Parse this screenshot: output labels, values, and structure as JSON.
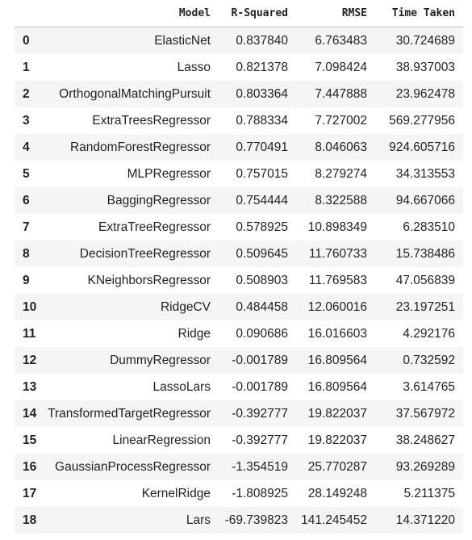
{
  "table": {
    "columns": [
      "",
      "Model",
      "R-Squared",
      "RMSE",
      "Time Taken"
    ],
    "rows": [
      {
        "index": "0",
        "model": "ElasticNet",
        "r2": "0.837840",
        "rmse": "6.763483",
        "time": "30.724689"
      },
      {
        "index": "1",
        "model": "Lasso",
        "r2": "0.821378",
        "rmse": "7.098424",
        "time": "38.937003"
      },
      {
        "index": "2",
        "model": "OrthogonalMatchingPursuit",
        "r2": "0.803364",
        "rmse": "7.447888",
        "time": "23.962478"
      },
      {
        "index": "3",
        "model": "ExtraTreesRegressor",
        "r2": "0.788334",
        "rmse": "7.727002",
        "time": "569.277956"
      },
      {
        "index": "4",
        "model": "RandomForestRegressor",
        "r2": "0.770491",
        "rmse": "8.046063",
        "time": "924.605716"
      },
      {
        "index": "5",
        "model": "MLPRegressor",
        "r2": "0.757015",
        "rmse": "8.279274",
        "time": "34.313553"
      },
      {
        "index": "6",
        "model": "BaggingRegressor",
        "r2": "0.754444",
        "rmse": "8.322588",
        "time": "94.667066"
      },
      {
        "index": "7",
        "model": "ExtraTreeRegressor",
        "r2": "0.578925",
        "rmse": "10.898349",
        "time": "6.283510"
      },
      {
        "index": "8",
        "model": "DecisionTreeRegressor",
        "r2": "0.509645",
        "rmse": "11.760733",
        "time": "15.738486"
      },
      {
        "index": "9",
        "model": "KNeighborsRegressor",
        "r2": "0.508903",
        "rmse": "11.769583",
        "time": "47.056839"
      },
      {
        "index": "10",
        "model": "RidgeCV",
        "r2": "0.484458",
        "rmse": "12.060016",
        "time": "23.197251"
      },
      {
        "index": "11",
        "model": "Ridge",
        "r2": "0.090686",
        "rmse": "16.016603",
        "time": "4.292176"
      },
      {
        "index": "12",
        "model": "DummyRegressor",
        "r2": "-0.001789",
        "rmse": "16.809564",
        "time": "0.732592"
      },
      {
        "index": "13",
        "model": "LassoLars",
        "r2": "-0.001789",
        "rmse": "16.809564",
        "time": "3.614765"
      },
      {
        "index": "14",
        "model": "TransformedTargetRegressor",
        "r2": "-0.392777",
        "rmse": "19.822037",
        "time": "37.567972"
      },
      {
        "index": "15",
        "model": "LinearRegression",
        "r2": "-0.392777",
        "rmse": "19.822037",
        "time": "38.248627"
      },
      {
        "index": "16",
        "model": "GaussianProcessRegressor",
        "r2": "-1.354519",
        "rmse": "25.770287",
        "time": "93.269289"
      },
      {
        "index": "17",
        "model": "KernelRidge",
        "r2": "-1.808925",
        "rmse": "28.149248",
        "time": "5.211375"
      },
      {
        "index": "18",
        "model": "Lars",
        "r2": "-69.739823",
        "rmse": "141.245452",
        "time": "14.371220"
      }
    ]
  }
}
